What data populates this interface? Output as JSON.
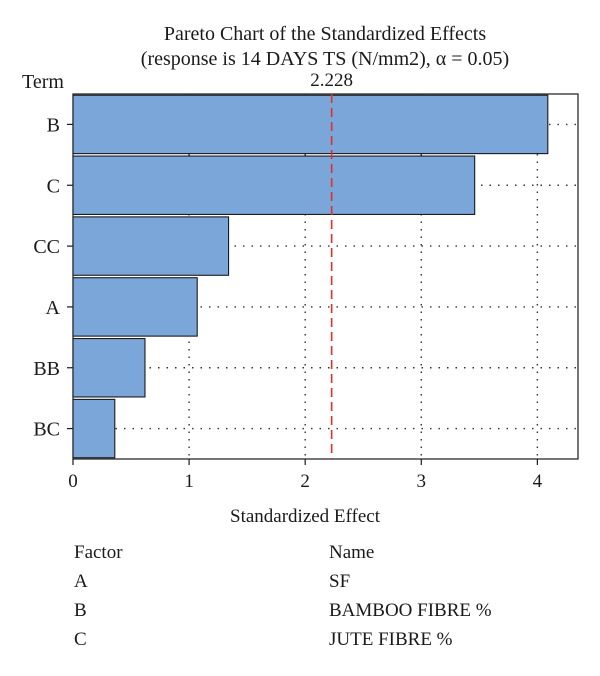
{
  "chart_data": {
    "type": "bar",
    "orientation": "horizontal",
    "title": "Pareto Chart of the Standardized Effects",
    "subtitle": "(response is 14 DAYS TS (N/mm2), α = 0.05)",
    "ylabel": "Term",
    "xlabel": "Standardized Effect",
    "categories": [
      "B",
      "C",
      "CC",
      "A",
      "BB",
      "BC"
    ],
    "values": [
      4.09,
      3.46,
      1.34,
      1.07,
      0.62,
      0.36
    ],
    "xlim": [
      0,
      4.35
    ],
    "xticks": [
      "0",
      "1",
      "2",
      "3",
      "4"
    ],
    "xtick_values": [
      0,
      1,
      2,
      3,
      4
    ],
    "reference_line": {
      "value": 2.228,
      "label": "2.228",
      "color": "#e0302a"
    },
    "grid": true,
    "colors": {
      "bar_fill": "#7ba6da",
      "bar_stroke": "#1a1a1a",
      "grid": "#333333"
    }
  },
  "legend_table": {
    "headers": {
      "factor": "Factor",
      "name": "Name"
    },
    "rows": [
      {
        "factor": "A",
        "name": "SF"
      },
      {
        "factor": "B",
        "name": "BAMBOO FIBRE %"
      },
      {
        "factor": "C",
        "name": "JUTE FIBRE %"
      }
    ]
  }
}
